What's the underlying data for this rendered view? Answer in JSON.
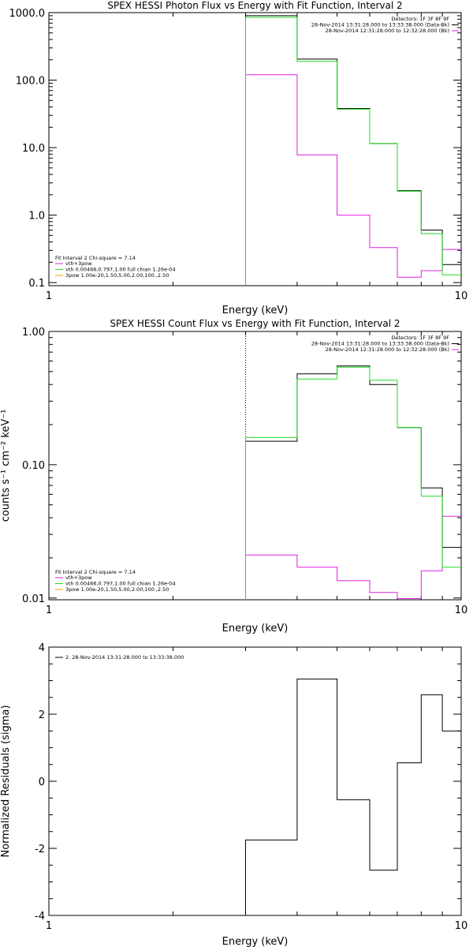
{
  "chart_data": [
    {
      "type": "line",
      "title": "SPEX HESSI Photon Flux vs Energy with Fit Function, Interval 2",
      "xlabel": "Energy (keV)",
      "ylabel": "",
      "xscale": "log",
      "yscale": "log",
      "xlim": [
        1,
        10
      ],
      "ylim": [
        0.09,
        1000
      ],
      "xticks": [
        "1",
        "10"
      ],
      "yticks": [
        {
          "v": 1000,
          "label": "1000.0"
        },
        {
          "v": 100,
          "label": "100.0"
        },
        {
          "v": 10,
          "label": "10.0"
        },
        {
          "v": 1,
          "label": "1.0"
        },
        {
          "v": 0.1,
          "label": "0.1"
        }
      ],
      "vline": 3.0,
      "bin_edges": [
        3.0,
        4.0,
        5.0,
        6.0,
        7.0,
        8.0,
        9.0,
        10.0
      ],
      "series": [
        {
          "name": "",
          "color": "#000000",
          "values": [
            900,
            205,
            38,
            11.5,
            2.3,
            0.6,
            0.185
          ]
        },
        {
          "name": "vth+3pow",
          "color": "#e020e0",
          "values": [
            120,
            7.8,
            1.0,
            0.33,
            0.12,
            0.15,
            0.31
          ]
        },
        {
          "name": "vth 0.00466,0.797,1.00 full chian 1.26e-04",
          "color": "#22dd22",
          "values": [
            850,
            190,
            37,
            11.5,
            2.25,
            0.53,
            0.13
          ]
        },
        {
          "name": "3pow 1.00e-20,1.50,5.00,2.00,100.,2.50",
          "color": "#ff9900",
          "values": []
        }
      ],
      "legend_position": "bottom-left",
      "fit_label": "Fit Interval  2    Chi-square = 7.14",
      "header": [
        "Detectors: 1F 3F 8F 9F",
        "28-Nov-2014 13:31:28.000 to 13:33:38.000 (Data-Bk)",
        "28-Nov-2014 12:31:28.000 to 12:32:28.000 (Bk)"
      ],
      "header_colors": [
        "",
        "#000000",
        "#e020e0"
      ]
    },
    {
      "type": "line",
      "title": "SPEX HESSI Count Flux vs Energy with Fit Function, Interval 2",
      "xlabel": "Energy (keV)",
      "ylabel": "counts s⁻¹ cm⁻² keV⁻¹",
      "xscale": "log",
      "yscale": "log",
      "xlim": [
        1,
        10
      ],
      "ylim": [
        0.0097,
        1.0
      ],
      "xticks": [
        "1",
        "10"
      ],
      "yticks": [
        {
          "v": 1.0,
          "label": "1.00"
        },
        {
          "v": 0.1,
          "label": "0.10"
        },
        {
          "v": 0.01,
          "label": "0.01"
        }
      ],
      "vline": 3.0,
      "bin_edges": [
        3.0,
        4.0,
        5.0,
        6.0,
        7.0,
        8.0,
        9.0,
        10.0
      ],
      "series": [
        {
          "name": "",
          "color": "#000000",
          "values": [
            0.15,
            0.48,
            0.55,
            0.4,
            0.19,
            0.067,
            0.024
          ]
        },
        {
          "name": "vth+3pow",
          "color": "#e020e0",
          "values": [
            0.021,
            0.017,
            0.0135,
            0.011,
            0.0099,
            0.016,
            0.041
          ]
        },
        {
          "name": "vth 0.00466,0.797,1.00 full chian 1.26e-04",
          "color": "#22dd22",
          "values": [
            0.16,
            0.44,
            0.54,
            0.43,
            0.19,
            0.058,
            0.017
          ]
        },
        {
          "name": "3pow 1.00e-20,1.50,5.00,2.00,100.,2.50",
          "color": "#ff9900",
          "values": []
        }
      ],
      "legend_position": "bottom-left",
      "fit_label": "Fit Interval  2    Chi-square = 7.14",
      "header": [
        "Detectors: 1F 3F 8F 9F",
        "28-Nov-2014 13:31:28.000 to 13:33:38.000 (Data-Bk)",
        "28-Nov-2014 12:31:28.000 to 12:32:28.000 (Bk)"
      ],
      "header_colors": [
        "",
        "#000000",
        "#e020e0"
      ]
    },
    {
      "type": "line",
      "title": "",
      "xlabel": "Energy (keV)",
      "ylabel": "Normalized Residuals (sigma)",
      "xscale": "log",
      "yscale": "linear",
      "xlim": [
        1,
        10
      ],
      "ylim": [
        -4,
        4
      ],
      "xticks": [
        "1",
        "10"
      ],
      "yticks": [
        {
          "v": 4,
          "label": "4"
        },
        {
          "v": 2,
          "label": "2"
        },
        {
          "v": 0,
          "label": "0"
        },
        {
          "v": -2,
          "label": "-2"
        },
        {
          "v": -4,
          "label": "-4"
        }
      ],
      "bin_edges": [
        3.0,
        4.0,
        5.0,
        6.0,
        7.0,
        8.0,
        9.0,
        10.0
      ],
      "series": [
        {
          "name": "2. 28-Nov-2014 13:31:28.000 to 13:33:38.000",
          "color": "#000000",
          "values": [
            -1.75,
            3.05,
            -0.55,
            -2.65,
            0.55,
            2.58,
            1.5
          ]
        }
      ],
      "legend_position": "top-left"
    }
  ]
}
